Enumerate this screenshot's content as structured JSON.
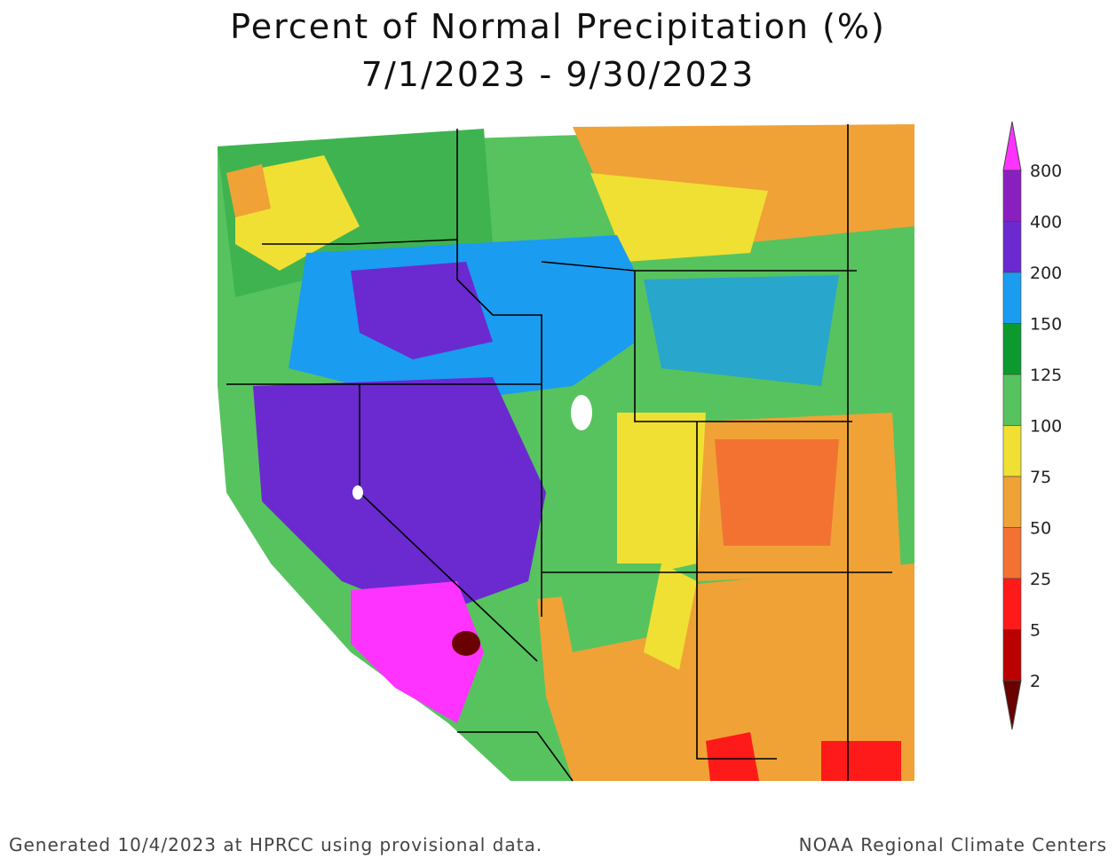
{
  "title": "Percent of Normal Precipitation (%)",
  "subtitle": "7/1/2023 - 9/30/2023",
  "footer_left": "Generated 10/4/2023 at HPRCC using provisional data.",
  "footer_right": "NOAA Regional Climate Centers",
  "legend": {
    "labels": [
      "800",
      "400",
      "200",
      "150",
      "125",
      "100",
      "75",
      "50",
      "25",
      "5",
      "2"
    ],
    "colors": [
      "#ff33ff",
      "#8a1fc0",
      "#6a2ad0",
      "#1a9cf0",
      "#0c9a2e",
      "#57c35e",
      "#f0e033",
      "#f0a236",
      "#f37232",
      "#ff1a1a",
      "#bb0000",
      "#6a0000"
    ]
  }
}
